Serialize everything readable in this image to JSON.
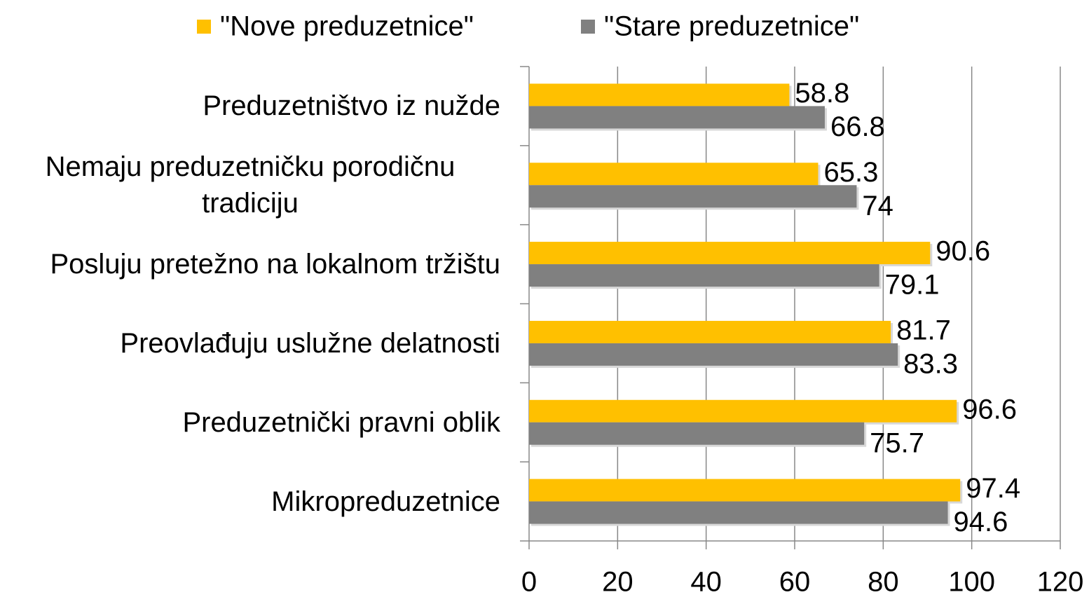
{
  "chart_data": {
    "type": "bar",
    "orientation": "horizontal",
    "categories": [
      "Preduzetništvo iz nužde",
      "Nemaju preduzetničku porodičnu tradiciju",
      "Posluju pretežno na lokalnom tržištu",
      "Preovlađuju uslužne delatnosti",
      "Preduzetnički pravni oblik",
      "Mikropreduzetnice"
    ],
    "series": [
      {
        "name": "\"Nove preduzetnice\"",
        "color": "#ffc000",
        "values": [
          58.8,
          65.3,
          90.6,
          81.7,
          96.6,
          97.4
        ]
      },
      {
        "name": "\"Stare preduzetnice\"",
        "color": "#808080",
        "values": [
          66.8,
          74,
          79.1,
          83.3,
          75.7,
          94.6
        ]
      }
    ],
    "xlim": [
      0,
      120
    ],
    "xticks": [
      0,
      20,
      40,
      60,
      80,
      100,
      120
    ],
    "grid": true,
    "legend": "top"
  }
}
